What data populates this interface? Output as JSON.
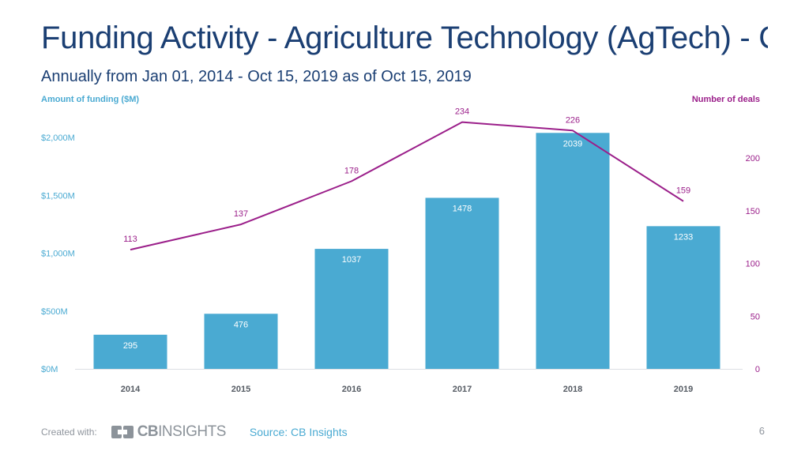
{
  "title": "Funding Activity - Agriculture Technology (AgTech) - Com…",
  "subtitle": "Annually from Jan 01, 2014 - Oct 15, 2019 as of Oct 15, 2019",
  "footer": {
    "created_with": "Created with:",
    "logo_bold": "CB",
    "logo_rest": "INSIGHTS",
    "source": "Source: CB Insights",
    "page_number": "6"
  },
  "colors": {
    "bar": "#4aaad2",
    "line": "#9b1f8a",
    "left_axis_text": "#4aaad2",
    "right_axis_text": "#9b1f8a",
    "x_axis_text": "#555b63"
  },
  "chart_data": {
    "type": "bar",
    "categories": [
      "2014",
      "2015",
      "2016",
      "2017",
      "2018",
      "2019"
    ],
    "series": [
      {
        "name": "Amount of funding ($M)",
        "type": "bar",
        "axis": "left",
        "values": [
          295,
          476,
          1037,
          1478,
          2039,
          1233
        ]
      },
      {
        "name": "Number of deals",
        "type": "line",
        "axis": "right",
        "values": [
          113,
          137,
          178,
          234,
          226,
          159
        ]
      }
    ],
    "y_left": {
      "label": "Amount of funding ($M)",
      "ticks": [
        0,
        500,
        1000,
        1500,
        2000
      ],
      "tick_labels": [
        "$0M",
        "$500M",
        "$1,000M",
        "$1,500M",
        "$2,000M"
      ],
      "range": [
        0,
        2000
      ]
    },
    "y_right": {
      "label": "Number of deals",
      "ticks": [
        0,
        50,
        100,
        150,
        200
      ],
      "tick_labels": [
        "0",
        "50",
        "100",
        "150",
        "200"
      ],
      "range": [
        0,
        200
      ]
    }
  }
}
